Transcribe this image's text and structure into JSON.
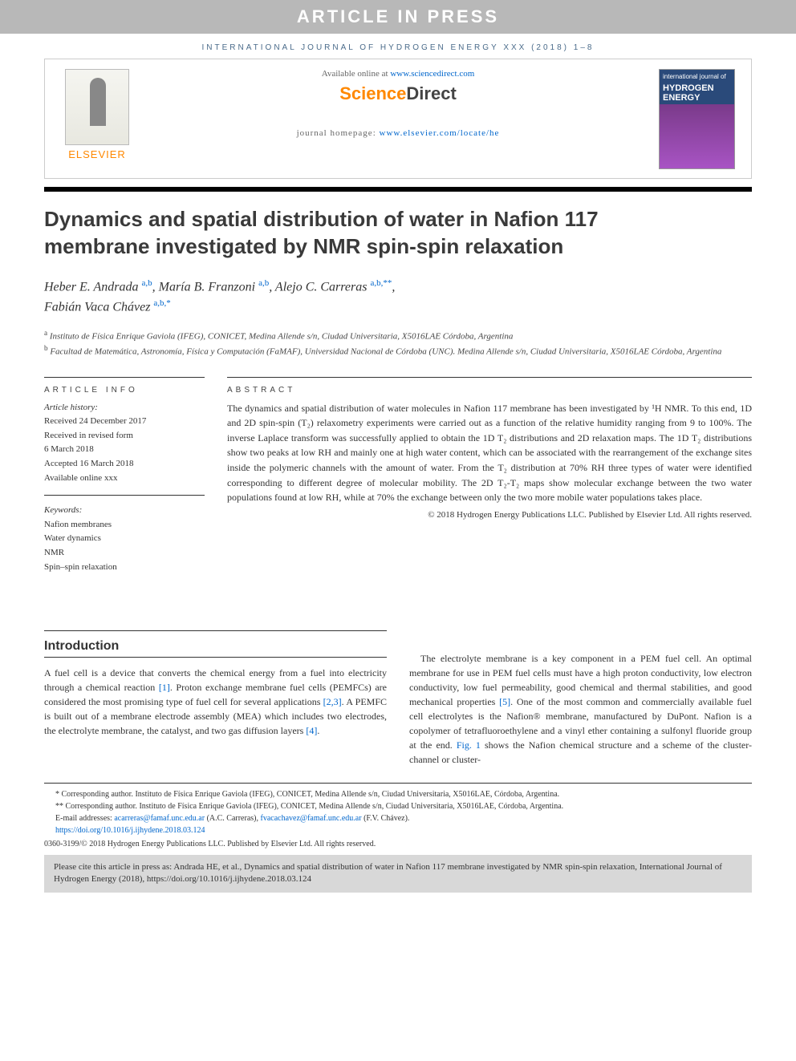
{
  "banner": {
    "article_in_press": "ARTICLE IN PRESS"
  },
  "journal_ref": "INTERNATIONAL JOURNAL OF HYDROGEN ENERGY XXX (2018) 1–8",
  "header": {
    "available_prefix": "Available online at ",
    "available_link": "www.sciencedirect.com",
    "sciencedirect": "ScienceDirect",
    "homepage_prefix": "journal homepage: ",
    "homepage_link": "www.elsevier.com/locate/he",
    "elsevier": "ELSEVIER",
    "cover_small": "international journal of",
    "cover_main1": "HYDROGEN",
    "cover_main2": "ENERGY"
  },
  "title": "Dynamics and spatial distribution of water in Nafion 117 membrane investigated by NMR spin-spin relaxation",
  "authors": {
    "a1_name": "Heber E. Andrada",
    "a1_sup": "a,b",
    "a2_name": "María B. Franzoni",
    "a2_sup": "a,b",
    "a3_name": "Alejo C. Carreras",
    "a3_sup": "a,b,**",
    "a4_name": "Fabián Vaca Chávez",
    "a4_sup": "a,b,*"
  },
  "affiliations": {
    "a": "Instituto de Física Enrique Gaviola (IFEG), CONICET, Medina Allende s/n, Ciudad Universitaria, X5016LAE Córdoba, Argentina",
    "b": "Facultad de Matemática, Astronomía, Física y Computación (FaMAF), Universidad Nacional de Córdoba (UNC). Medina Allende s/n, Ciudad Universitaria, X5016LAE Córdoba, Argentina"
  },
  "article_info": {
    "header": "ARTICLE INFO",
    "history_title": "Article history:",
    "received": "Received 24 December 2017",
    "revised1": "Received in revised form",
    "revised2": "6 March 2018",
    "accepted": "Accepted 16 March 2018",
    "online": "Available online xxx",
    "keywords_title": "Keywords:",
    "kw1": "Nafion membranes",
    "kw2": "Water dynamics",
    "kw3": "NMR",
    "kw4": "Spin–spin relaxation"
  },
  "abstract": {
    "header": "ABSTRACT",
    "text": "The dynamics and spatial distribution of water molecules in Nafion 117 membrane has been investigated by ¹H NMR. To this end, 1D and 2D spin-spin (T₂) relaxometry experiments were carried out as a function of the relative humidity ranging from 9 to 100%. The inverse Laplace transform was successfully applied to obtain the 1D T₂ distributions and 2D relaxation maps. The 1D T₂ distributions show two peaks at low RH and mainly one at high water content, which can be associated with the rearrangement of the exchange sites inside the polymeric channels with the amount of water. From the T₂ distribution at 70% RH three types of water were identified corresponding to different degree of molecular mobility. The 2D T₂-T₂ maps show molecular exchange between the two water populations found at low RH, while at 70% the exchange between only the two more mobile water populations takes place.",
    "copyright": "© 2018 Hydrogen Energy Publications LLC. Published by Elsevier Ltd. All rights reserved."
  },
  "introduction": {
    "heading": "Introduction",
    "col1": "A fuel cell is a device that converts the chemical energy from a fuel into electricity through a chemical reaction [1]. Proton exchange membrane fuel cells (PEMFCs) are considered the most promising type of fuel cell for several applications [2,3]. A PEMFC is built out of a membrane electrode assembly (MEA) which includes two electrodes, the electrolyte membrane, the catalyst, and two gas diffusion layers [4].",
    "col2": "The electrolyte membrane is a key component in a PEM fuel cell. An optimal membrane for use in PEM fuel cells must have a high proton conductivity, low electron conductivity, low fuel permeability, good chemical and thermal stabilities, and good mechanical properties [5]. One of the most common and commercially available fuel cell electrolytes is the Nafion® membrane, manufactured by DuPont. Nafion is a copolymer of tetrafluoroethylene and a vinyl ether containing a sulfonyl fluoride group at the end. Fig. 1 shows the Nafion chemical structure and a scheme of the cluster-channel or cluster-",
    "ref1": "[1]",
    "ref23": "[2,3]",
    "ref4": "[4]",
    "ref5": "[5]",
    "fig1": "Fig. 1"
  },
  "footnotes": {
    "corr1_label": "* Corresponding author.",
    "corr1_text": " Instituto de Física Enrique Gaviola (IFEG), CONICET, Medina Allende s/n, Ciudad Universitaria, X5016LAE, Córdoba, Argentina.",
    "corr2_label": "** Corresponding author.",
    "corr2_text": " Instituto de Física Enrique Gaviola (IFEG), CONICET, Medina Allende s/n, Ciudad Universitaria, X5016LAE, Córdoba, Argentina.",
    "email_label": "E-mail addresses: ",
    "email1": "acarreras@famaf.unc.edu.ar",
    "email1_name": " (A.C. Carreras), ",
    "email2": "fvacachavez@famaf.unc.edu.ar",
    "email2_name": " (F.V. Chávez).",
    "doi": "https://doi.org/10.1016/j.ijhydene.2018.03.124",
    "issn": "0360-3199/© 2018 Hydrogen Energy Publications LLC. Published by Elsevier Ltd. All rights reserved."
  },
  "citebox": "Please cite this article in press as: Andrada HE, et al., Dynamics and spatial distribution of water in Nafion 117 membrane investigated by NMR spin-spin relaxation, International Journal of Hydrogen Energy (2018), https://doi.org/10.1016/j.ijhydene.2018.03.124",
  "colors": {
    "link": "#0066cc",
    "orange": "#ff8800",
    "banner_bg": "#b8b8b8",
    "journal_ref": "#4a6b8a",
    "citebox_bg": "#d8d8d8"
  }
}
